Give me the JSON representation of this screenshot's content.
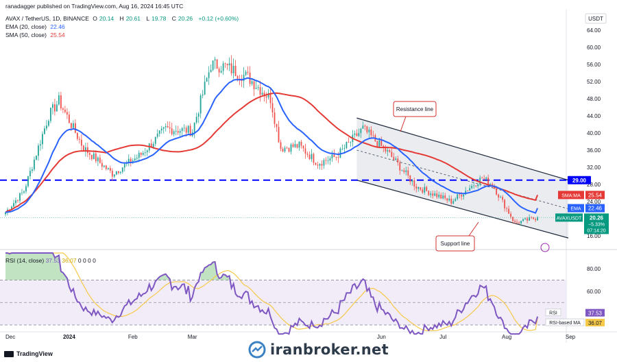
{
  "publisher": "ranadagger published on TradingView.com, Aug 16, 2024 16:45 UTC",
  "instrument": {
    "title": "AVAX / TetherUS, 1D, BINANCE",
    "ohlc": [
      {
        "label": "O",
        "value": "20.14"
      },
      {
        "label": "H",
        "value": "20.61"
      },
      {
        "label": "L",
        "value": "19.78"
      },
      {
        "label": "C",
        "value": "20.26"
      }
    ],
    "change": "+0.12 (+0.60%)"
  },
  "indicators": [
    {
      "label": "EMA (20, close)",
      "value": "22.46",
      "color": "#2962ff"
    },
    {
      "label": "SMA (50, close)",
      "value": "25.54",
      "color": "#e53935"
    }
  ],
  "currency": "USDT",
  "price_axis": {
    "ticks": [
      "64.00",
      "60.00",
      "56.00",
      "52.00",
      "48.00",
      "44.00",
      "40.00",
      "36.00",
      "32.00",
      "28.00",
      "24.00",
      "20.00",
      "16.00"
    ],
    "tick_values": [
      64,
      60,
      56,
      52,
      48,
      44,
      40,
      36,
      32,
      28,
      24,
      20,
      16
    ]
  },
  "labels": {
    "level": "29.00",
    "sma_tag": "SMA:MA",
    "sma_value": "25.54",
    "ema_tag": "EMA",
    "ema_value": "22.46",
    "ticker": "AVAXUSDT",
    "price": "20.26",
    "change_pct": "−5.33%",
    "countdown": "07:14:20",
    "resistance": "Resistance line",
    "support": "Support line"
  },
  "rsi": {
    "header": "RSI (14, close)",
    "rsi_value": "37.53",
    "ma_value": "36.07",
    "zeros": "0 0 0 0",
    "tag_rsi": "RSI",
    "tag_ma": "RSI-based MA",
    "axis_ticks": [
      "80.00",
      "60.00",
      "40.00"
    ],
    "axis_values": [
      80,
      60,
      40
    ]
  },
  "time_axis": [
    "Dec",
    "2024",
    "Feb",
    "Mar",
    "Jun",
    "Jul",
    "Aug",
    "Sep"
  ],
  "watermark": "iranbroker.net",
  "tv_logo": "TradingView",
  "colors": {
    "up": "#26a69a",
    "down": "#ef5350",
    "ema": "#2962ff",
    "sma": "#e53935",
    "rsi": "#7e57c2",
    "rsi_ma": "#f7c948",
    "level": "#0000ff",
    "channel": "#1e293b",
    "channel_fill": "#d1d5db",
    "callout": "#d32f2f"
  },
  "chart_data": {
    "type": "candlestick",
    "title": "AVAX / TetherUS, 1D, BINANCE",
    "x_range": [
      "2023-12-01",
      "2024-08-16"
    ],
    "ylim": [
      14,
      67
    ],
    "key_points_close": [
      {
        "date": "2023-12-01",
        "close": 21.5
      },
      {
        "date": "2023-12-10",
        "close": 26.5
      },
      {
        "date": "2023-12-22",
        "close": 44.0
      },
      {
        "date": "2023-12-27",
        "close": 47.5
      },
      {
        "date": "2024-01-08",
        "close": 36.5
      },
      {
        "date": "2024-01-22",
        "close": 30.5
      },
      {
        "date": "2024-02-05",
        "close": 35.0
      },
      {
        "date": "2024-02-17",
        "close": 41.0
      },
      {
        "date": "2024-03-01",
        "close": 40.5
      },
      {
        "date": "2024-03-10",
        "close": 56.0
      },
      {
        "date": "2024-03-17",
        "close": 55.5
      },
      {
        "date": "2024-03-28",
        "close": 53.0
      },
      {
        "date": "2024-04-08",
        "close": 48.0
      },
      {
        "date": "2024-04-13",
        "close": 36.5
      },
      {
        "date": "2024-04-22",
        "close": 37.0
      },
      {
        "date": "2024-05-01",
        "close": 33.0
      },
      {
        "date": "2024-05-10",
        "close": 34.5
      },
      {
        "date": "2024-05-23",
        "close": 41.0
      },
      {
        "date": "2024-06-05",
        "close": 35.0
      },
      {
        "date": "2024-06-18",
        "close": 27.5
      },
      {
        "date": "2024-07-05",
        "close": 24.0
      },
      {
        "date": "2024-07-20",
        "close": 29.5
      },
      {
        "date": "2024-07-25",
        "close": 28.0
      },
      {
        "date": "2024-08-05",
        "close": 19.0
      },
      {
        "date": "2024-08-16",
        "close": 20.26
      }
    ],
    "series": [
      {
        "name": "EMA (20, close)",
        "last": 22.46
      },
      {
        "name": "SMA (50, close)",
        "last": 25.54
      }
    ],
    "horizontal_level": 29.0,
    "annotations": [
      "Resistance line",
      "Support line"
    ],
    "rsi": {
      "ylim": [
        22,
        94
      ],
      "levels": [
        70,
        50,
        30
      ],
      "last_rsi": 37.53,
      "last_ma": 36.07,
      "key_points": [
        {
          "date": "2023-12-01",
          "value": 68
        },
        {
          "date": "2023-12-22",
          "value": 85
        },
        {
          "date": "2024-01-08",
          "value": 48
        },
        {
          "date": "2024-01-22",
          "value": 38
        },
        {
          "date": "2024-02-17",
          "value": 58
        },
        {
          "date": "2024-03-10",
          "value": 75
        },
        {
          "date": "2024-04-13",
          "value": 34
        },
        {
          "date": "2024-05-23",
          "value": 58
        },
        {
          "date": "2024-07-05",
          "value": 30
        },
        {
          "date": "2024-07-20",
          "value": 66
        },
        {
          "date": "2024-08-05",
          "value": 30
        },
        {
          "date": "2024-08-16",
          "value": 37.53
        }
      ]
    }
  }
}
